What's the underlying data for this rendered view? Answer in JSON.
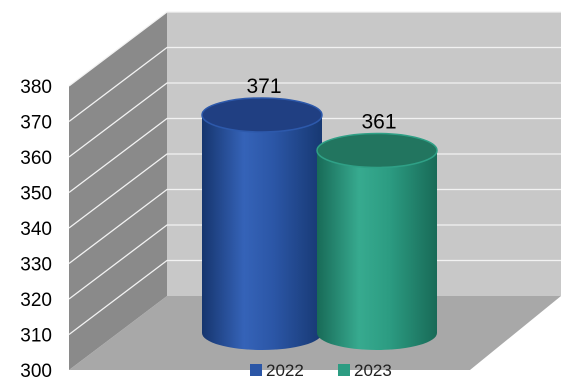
{
  "chart_data": {
    "type": "bar",
    "style": "3d-cylinder",
    "categories": [
      "2022",
      "2023"
    ],
    "values": [
      371,
      361
    ],
    "data_labels": [
      "371",
      "361"
    ],
    "y_ticks": [
      "300",
      "310",
      "320",
      "330",
      "340",
      "350",
      "360",
      "370",
      "380"
    ],
    "ylim": [
      300,
      380
    ],
    "grid": true,
    "legend": {
      "position": "bottom",
      "entries": [
        {
          "label": "2022",
          "color": "#2B56A6"
        },
        {
          "label": "2023",
          "color": "#2C9C82"
        }
      ]
    },
    "colors": {
      "bar_2022": "#2B56A6",
      "bar_2023": "#2C9C82",
      "back_wall": "#C8C8C8",
      "side_wall": "#8A8A8A",
      "floor": "#A8A8A8",
      "grid": "#F2F2F2"
    }
  }
}
